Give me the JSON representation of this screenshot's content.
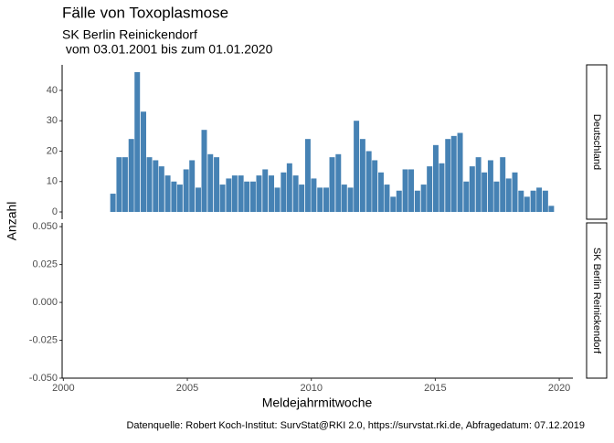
{
  "chart_data": [
    {
      "type": "bar",
      "title": "Fälle von Toxoplasmose",
      "subtitle": [
        "SK Berlin Reinickendorf",
        " vom 03.01.2001 bis zum 01.01.2020"
      ],
      "ylabel": "Anzahl",
      "strip": "Deutschland",
      "color": "#4682b4",
      "x": [
        2002,
        2002.25,
        2002.49,
        2002.74,
        2002.98,
        2003.23,
        2003.47,
        2003.72,
        2003.96,
        2004.21,
        2004.46,
        2004.7,
        2004.95,
        2005.19,
        2005.44,
        2005.68,
        2005.93,
        2006.18,
        2006.42,
        2006.67,
        2006.91,
        2007.16,
        2007.4,
        2007.65,
        2007.89,
        2008.14,
        2008.39,
        2008.63,
        2008.88,
        2009.12,
        2009.37,
        2009.61,
        2009.86,
        2010.1,
        2010.35,
        2010.6,
        2010.84,
        2011.09,
        2011.33,
        2011.58,
        2011.82,
        2012.07,
        2012.32,
        2012.56,
        2012.81,
        2013.05,
        2013.3,
        2013.54,
        2013.79,
        2014.03,
        2014.28,
        2014.53,
        2014.77,
        2015.02,
        2015.26,
        2015.51,
        2015.75,
        2016,
        2016.25,
        2016.49,
        2016.74,
        2016.98,
        2017.23,
        2017.47,
        2017.72,
        2017.96,
        2018.21,
        2018.46,
        2018.7,
        2018.95,
        2019.19,
        2019.44,
        2019.68
      ],
      "values": [
        6,
        18,
        18,
        24,
        46,
        33,
        18,
        17,
        15,
        12,
        10,
        9,
        14,
        17,
        8,
        27,
        19,
        18,
        9,
        11,
        12,
        12,
        10,
        10,
        12,
        14,
        12,
        8,
        13,
        16,
        12,
        9,
        24,
        11,
        8,
        8,
        18,
        19,
        9,
        8,
        30,
        24,
        20,
        17,
        13,
        9,
        5,
        7,
        14,
        14,
        7,
        9,
        15,
        22,
        16,
        24,
        25,
        26,
        10,
        15,
        18,
        13,
        17,
        10,
        18,
        11,
        13,
        7,
        5,
        7,
        8,
        7,
        2
      ],
      "xlim": [
        1999.95,
        2020.55
      ],
      "ylim": [
        -2.4,
        48.4
      ],
      "yticks": [
        0,
        10,
        20,
        30,
        40
      ]
    },
    {
      "type": "bar",
      "strip": "SK Berlin Reinickendorf",
      "color": "#4682b4",
      "x": [],
      "values": [],
      "xlabel": "Meldejahrmitwoche",
      "caption": "Datenquelle: Robert Koch-Institut: SurvStat@RKI 2.0, https://survstat.rki.de, Abfragedatum: 07.12.2019",
      "xlim": [
        1999.95,
        2020.55
      ],
      "xticks": [
        2000,
        2005,
        2010,
        2015,
        2020
      ],
      "ylim": [
        -0.05,
        0.0525
      ],
      "yticks": [
        {
          "value": -0.05,
          "label": "-0.050"
        },
        {
          "value": -0.025,
          "label": "-0.025"
        },
        {
          "value": 0,
          "label": "0.000"
        },
        {
          "value": 0.025,
          "label": "0.025"
        },
        {
          "value": 0.05,
          "label": "0.050"
        }
      ]
    }
  ]
}
